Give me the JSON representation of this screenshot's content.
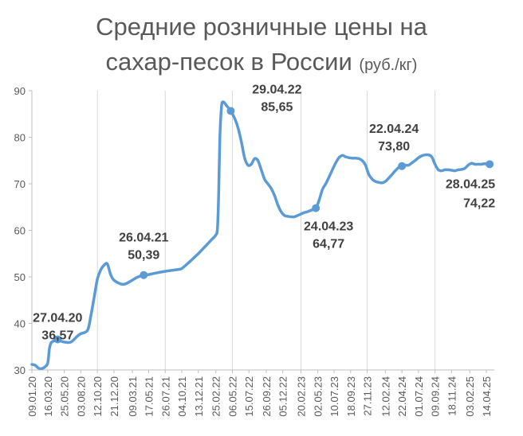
{
  "chart_data": {
    "type": "line",
    "title_line1": "Средние розничные цены на",
    "title_line2": "сахар-песок в России",
    "units": "(руб./кг)",
    "xlabel": "",
    "ylabel": "",
    "ylim": [
      30,
      90
    ],
    "yticks": [
      30,
      40,
      50,
      60,
      70,
      80,
      90
    ],
    "grid": "vertical",
    "line_color": "#5b9bd5",
    "xticks": [
      "09.01.20",
      "16.03.20",
      "25.05.20",
      "03.08.20",
      "12.10.20",
      "21.12.20",
      "09.03.21",
      "17.05.21",
      "26.07.21",
      "04.10.21",
      "13.12.21",
      "25.02.22",
      "06.05.22",
      "15.07.22",
      "26.09.22",
      "05.12.22",
      "20.02.23",
      "02.05.23",
      "10.07.23",
      "18.09.23",
      "27.11.23",
      "12.02.24",
      "22.04.24",
      "01.07.24",
      "09.09.24",
      "18.11.24",
      "03.02.25",
      "14.04.25"
    ],
    "series": [
      {
        "points": [
          [
            "09.01.20",
            31.2
          ],
          [
            "23.01.20",
            31.0
          ],
          [
            "06.02.20",
            30.4
          ],
          [
            "20.02.20",
            30.3
          ],
          [
            "05.03.20",
            30.7
          ],
          [
            "16.03.20",
            31.5
          ],
          [
            "23.03.20",
            34.5
          ],
          [
            "30.03.20",
            35.8
          ],
          [
            "13.04.20",
            36.3
          ],
          [
            "27.04.20",
            36.57
          ],
          [
            "11.05.20",
            36.2
          ],
          [
            "25.05.20",
            36.0
          ],
          [
            "22.06.20",
            36.0
          ],
          [
            "20.07.20",
            37.3
          ],
          [
            "03.08.20",
            37.8
          ],
          [
            "31.08.20",
            38.5
          ],
          [
            "14.09.20",
            41.5
          ],
          [
            "28.09.20",
            45.5
          ],
          [
            "12.10.20",
            49.5
          ],
          [
            "26.10.20",
            51.5
          ],
          [
            "09.11.20",
            52.5
          ],
          [
            "23.11.20",
            52.8
          ],
          [
            "07.12.20",
            50.5
          ],
          [
            "21.12.20",
            49.3
          ],
          [
            "18.01.21",
            48.5
          ],
          [
            "08.02.21",
            48.5
          ],
          [
            "09.03.21",
            49.3
          ],
          [
            "29.03.21",
            49.9
          ],
          [
            "26.04.21",
            50.39
          ],
          [
            "17.05.21",
            50.5
          ],
          [
            "14.06.21",
            50.8
          ],
          [
            "26.07.21",
            51.2
          ],
          [
            "23.08.21",
            51.4
          ],
          [
            "20.09.21",
            51.6
          ],
          [
            "04.10.21",
            51.8
          ],
          [
            "01.11.21",
            53.0
          ],
          [
            "13.12.21",
            55.0
          ],
          [
            "10.01.22",
            56.5
          ],
          [
            "07.02.22",
            58.0
          ],
          [
            "25.02.22",
            59.0
          ],
          [
            "04.03.22",
            60.5
          ],
          [
            "09.03.22",
            68.0
          ],
          [
            "14.03.22",
            80.0
          ],
          [
            "21.03.22",
            86.5
          ],
          [
            "28.03.22",
            87.6
          ],
          [
            "11.04.22",
            86.8
          ],
          [
            "29.04.22",
            85.65
          ],
          [
            "16.05.22",
            84.0
          ],
          [
            "30.05.22",
            82.0
          ],
          [
            "13.06.22",
            79.0
          ],
          [
            "27.06.22",
            75.5
          ],
          [
            "11.07.22",
            74.0
          ],
          [
            "25.07.22",
            74.2
          ],
          [
            "08.08.22",
            75.4
          ],
          [
            "22.08.22",
            75.0
          ],
          [
            "05.09.22",
            73.0
          ],
          [
            "19.09.22",
            71.0
          ],
          [
            "03.10.22",
            70.0
          ],
          [
            "17.10.22",
            69.0
          ],
          [
            "31.10.22",
            67.5
          ],
          [
            "14.11.22",
            65.5
          ],
          [
            "28.11.22",
            64.0
          ],
          [
            "12.12.22",
            63.2
          ],
          [
            "26.12.22",
            63.0
          ],
          [
            "09.01.23",
            62.9
          ],
          [
            "23.01.23",
            62.9
          ],
          [
            "06.02.23",
            63.2
          ],
          [
            "20.02.23",
            63.5
          ],
          [
            "06.03.23",
            63.8
          ],
          [
            "20.03.23",
            64.0
          ],
          [
            "03.04.23",
            64.3
          ],
          [
            "24.04.23",
            64.77
          ],
          [
            "08.05.23",
            66.5
          ],
          [
            "22.05.23",
            68.8
          ],
          [
            "05.06.23",
            70.0
          ],
          [
            "19.06.23",
            71.5
          ],
          [
            "03.07.23",
            73.0
          ],
          [
            "17.07.23",
            74.5
          ],
          [
            "31.07.23",
            75.6
          ],
          [
            "14.08.23",
            76.1
          ],
          [
            "28.08.23",
            75.8
          ],
          [
            "11.09.23",
            75.6
          ],
          [
            "25.09.23",
            75.5
          ],
          [
            "09.10.23",
            75.5
          ],
          [
            "23.10.23",
            75.4
          ],
          [
            "06.11.23",
            75.0
          ],
          [
            "20.11.23",
            74.0
          ],
          [
            "04.12.23",
            72.0
          ],
          [
            "18.12.23",
            71.0
          ],
          [
            "01.01.24",
            70.5
          ],
          [
            "15.01.24",
            70.3
          ],
          [
            "29.01.24",
            70.2
          ],
          [
            "12.02.24",
            70.5
          ],
          [
            "26.02.24",
            71.2
          ],
          [
            "11.03.24",
            72.0
          ],
          [
            "25.03.24",
            72.8
          ],
          [
            "08.04.24",
            73.5
          ],
          [
            "22.04.24",
            73.8
          ],
          [
            "06.05.24",
            74.0
          ],
          [
            "20.05.24",
            74.0
          ],
          [
            "03.06.24",
            74.5
          ],
          [
            "17.06.24",
            75.0
          ],
          [
            "01.07.24",
            75.6
          ],
          [
            "15.07.24",
            76.0
          ],
          [
            "29.07.24",
            76.2
          ],
          [
            "12.08.24",
            76.2
          ],
          [
            "26.08.24",
            75.8
          ],
          [
            "09.09.24",
            74.2
          ],
          [
            "23.09.24",
            73.0
          ],
          [
            "07.10.24",
            72.8
          ],
          [
            "21.10.24",
            73.0
          ],
          [
            "04.11.24",
            73.0
          ],
          [
            "18.11.24",
            72.9
          ],
          [
            "02.12.24",
            72.8
          ],
          [
            "16.12.24",
            73.0
          ],
          [
            "30.12.24",
            73.1
          ],
          [
            "13.01.25",
            73.3
          ],
          [
            "27.01.25",
            74.0
          ],
          [
            "10.02.25",
            74.4
          ],
          [
            "24.02.25",
            74.2
          ],
          [
            "10.03.25",
            74.2
          ],
          [
            "24.03.25",
            74.2
          ],
          [
            "07.04.25",
            74.3
          ],
          [
            "28.04.25",
            74.22
          ]
        ]
      }
    ],
    "annotations": [
      {
        "date": "27.04.20",
        "value": 36.57,
        "label_date": "27.04.20",
        "label_value": "36,57"
      },
      {
        "date": "26.04.21",
        "value": 50.39,
        "label_date": "26.04.21",
        "label_value": "50,39"
      },
      {
        "date": "29.04.22",
        "value": 85.65,
        "label_date": "29.04.22",
        "label_value": "85,65"
      },
      {
        "date": "24.04.23",
        "value": 64.77,
        "label_date": "24.04.23",
        "label_value": "64,77"
      },
      {
        "date": "22.04.24",
        "value": 73.8,
        "label_date": "22.04.24",
        "label_value": "73,80"
      },
      {
        "date": "28.04.25",
        "value": 74.22,
        "label_date": "28.04.25",
        "label_value": "74,22"
      }
    ]
  }
}
